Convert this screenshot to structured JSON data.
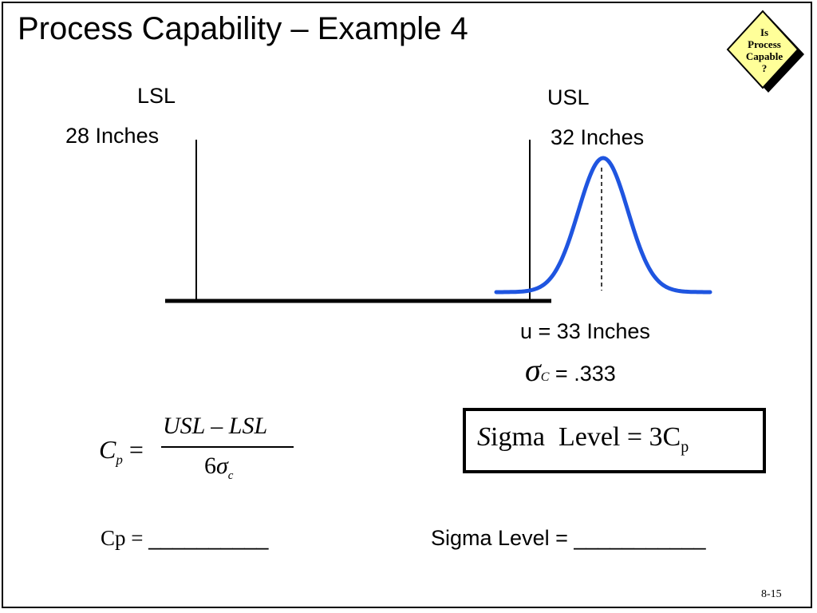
{
  "slide": {
    "title": "Process Capability – Example 4",
    "badge": {
      "line1": "Is",
      "line2": "Process",
      "line3": "Capable",
      "line4": "?"
    },
    "lsl": {
      "label": "LSL",
      "value": "28 Inches"
    },
    "usl": {
      "label": "USL",
      "value": "32 Inches"
    },
    "mean_text": "u = 33 Inches",
    "sigma": {
      "symbol": "σ",
      "subscript": "C",
      "text": "= .333"
    },
    "cp_formula": {
      "lhs": "C",
      "lhs_sub": "p",
      "equals": "=",
      "numerator": "USL – LSL",
      "denominator_coef": "6",
      "denominator_sym": "σ",
      "denominator_sub": "c"
    },
    "sigma_level_formula": {
      "first_letter": "S",
      "rest": "igma  Level = 3C",
      "sub": "p"
    },
    "cp_answer": {
      "label": "Cp = ",
      "blank": "__________"
    },
    "sigma_answer": {
      "label": "Sigma Level = ",
      "blank": "___________"
    },
    "page_number": "8-15"
  },
  "colors": {
    "curve": "#1f55e0",
    "badge_fill": "#ffff99",
    "ink": "#000000"
  }
}
